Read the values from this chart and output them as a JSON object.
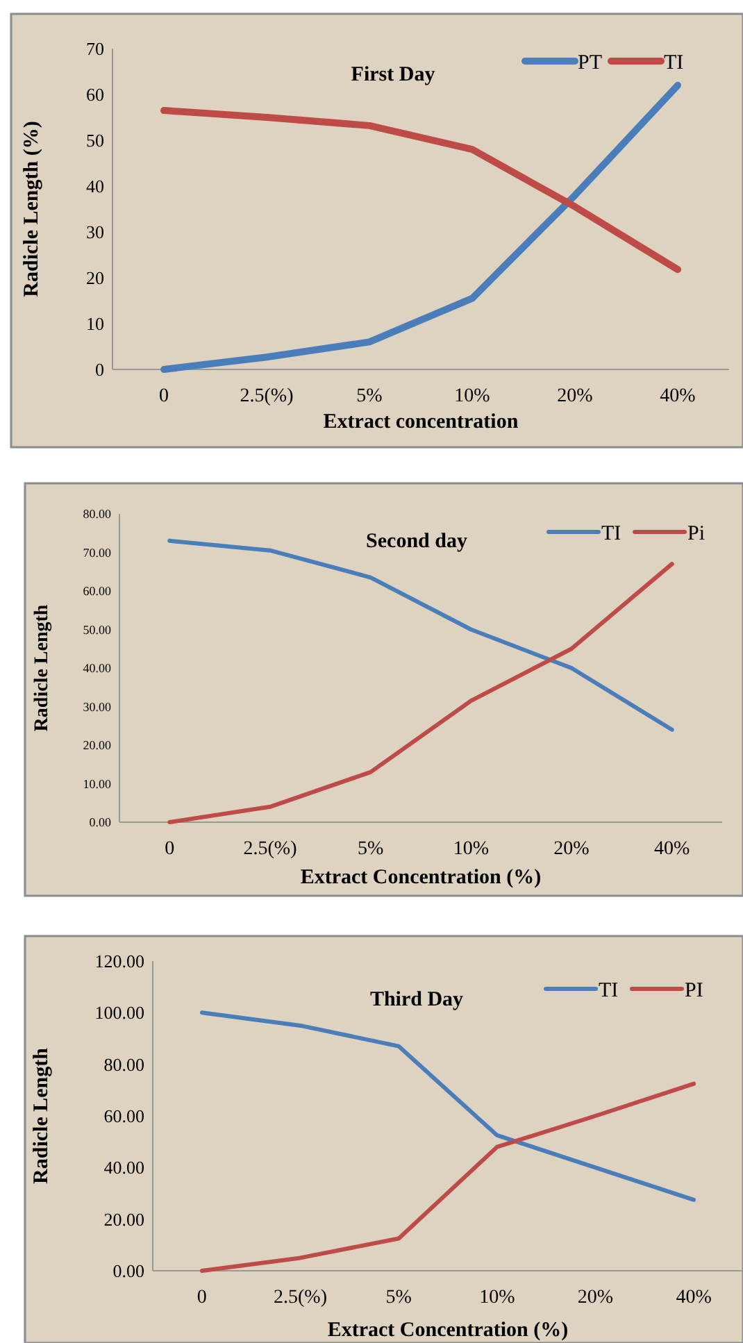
{
  "chart_data": [
    {
      "type": "line",
      "title": "First Day",
      "xlabel": "Extract concentration",
      "ylabel": "Radicle Length (%)",
      "categories": [
        "0",
        "2.5(%)",
        "5%",
        "10%",
        "20%",
        "40%"
      ],
      "ylim": [
        0,
        70
      ],
      "yticks": [
        0,
        10,
        20,
        30,
        40,
        50,
        60,
        70
      ],
      "legend": "top right",
      "grid": false,
      "series": [
        {
          "name": "PT",
          "color": "#4a7ebb",
          "values": [
            0,
            2.7,
            6,
            15.5,
            38,
            62
          ]
        },
        {
          "name": "TI",
          "color": "#be4b48",
          "values": [
            56.5,
            55,
            53.2,
            48,
            35.5,
            21.8
          ]
        }
      ]
    },
    {
      "type": "line",
      "title": "Second day",
      "xlabel": "Extract Concentration (%)",
      "ylabel": "Radicle Length",
      "categories": [
        "0",
        "2.5(%)",
        "5%",
        "10%",
        "20%",
        "40%"
      ],
      "ylim": [
        0,
        80
      ],
      "yticks": [
        {
          "value": 0,
          "label": "0.00"
        },
        {
          "value": 10,
          "label": "10.00"
        },
        {
          "value": 20,
          "label": "20.00"
        },
        {
          "value": 30,
          "label": "30.00"
        },
        {
          "value": 40,
          "label": "40.00"
        },
        {
          "value": 50,
          "label": "50.00"
        },
        {
          "value": 60,
          "label": "60.00"
        },
        {
          "value": 70,
          "label": "70.00"
        },
        {
          "value": 80,
          "label": "80.00"
        }
      ],
      "legend": "top right",
      "grid": false,
      "series": [
        {
          "name": "TI",
          "color": "#4a7ebb",
          "values": [
            73,
            70.5,
            63.5,
            50,
            40,
            24
          ]
        },
        {
          "name": "Pi",
          "color": "#be4b48",
          "values": [
            0,
            4,
            13,
            31.5,
            45,
            67
          ]
        }
      ]
    },
    {
      "type": "line",
      "title": "Third Day",
      "xlabel": "Extract Concentration (%)",
      "ylabel": "Radicle Length",
      "categories": [
        "0",
        "2.5(%)",
        "5%",
        "10%",
        "20%",
        "40%"
      ],
      "ylim": [
        0,
        120
      ],
      "yticks": [
        {
          "value": 0,
          "label": "0.00"
        },
        {
          "value": 20,
          "label": "20.00"
        },
        {
          "value": 40,
          "label": "40.00"
        },
        {
          "value": 60,
          "label": "60.00"
        },
        {
          "value": 80,
          "label": "80.00"
        },
        {
          "value": 100,
          "label": "100.00"
        },
        {
          "value": 120,
          "label": "120.00"
        }
      ],
      "legend": "top right",
      "grid": false,
      "series": [
        {
          "name": "TI",
          "color": "#4a7ebb",
          "values": [
            100,
            95,
            87,
            52.5,
            40,
            27.5
          ]
        },
        {
          "name": "PI",
          "color": "#be4b48",
          "values": [
            0,
            5,
            12.5,
            48,
            60,
            72.5
          ]
        }
      ]
    }
  ]
}
